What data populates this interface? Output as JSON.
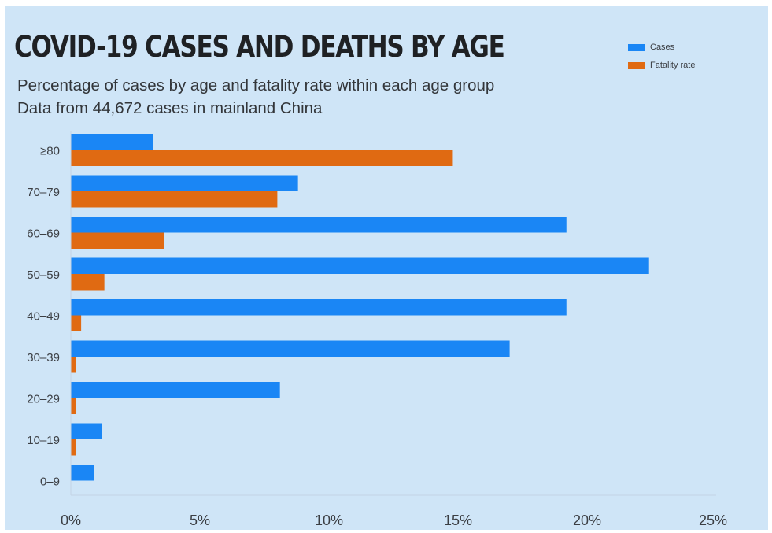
{
  "chart_data": {
    "type": "bar",
    "orientation": "horizontal",
    "title": "COVID-19 CASES AND DEATHS BY AGE",
    "subtitle": [
      "Percentage of cases by age and fatality rate within each age group",
      "Data from 44,672 cases in mainland China"
    ],
    "categories": [
      "≥80",
      "70–79",
      "60–69",
      "50–59",
      "40–49",
      "30–39",
      "20–29",
      "10–19",
      "0–9"
    ],
    "series": [
      {
        "name": "Cases",
        "color": "#1a86f5",
        "values": [
          3.2,
          8.8,
          19.2,
          22.4,
          19.2,
          17.0,
          8.1,
          1.2,
          0.9
        ]
      },
      {
        "name": "Fatality rate",
        "color": "#e06a12",
        "values": [
          14.8,
          8.0,
          3.6,
          1.3,
          0.4,
          0.2,
          0.2,
          0.2,
          0.0
        ]
      }
    ],
    "x_ticks": [
      "0%",
      "5%",
      "10%",
      "15%",
      "20%",
      "25%"
    ],
    "xlim": [
      0,
      25
    ],
    "legend_position": "top-right",
    "grid": false
  }
}
